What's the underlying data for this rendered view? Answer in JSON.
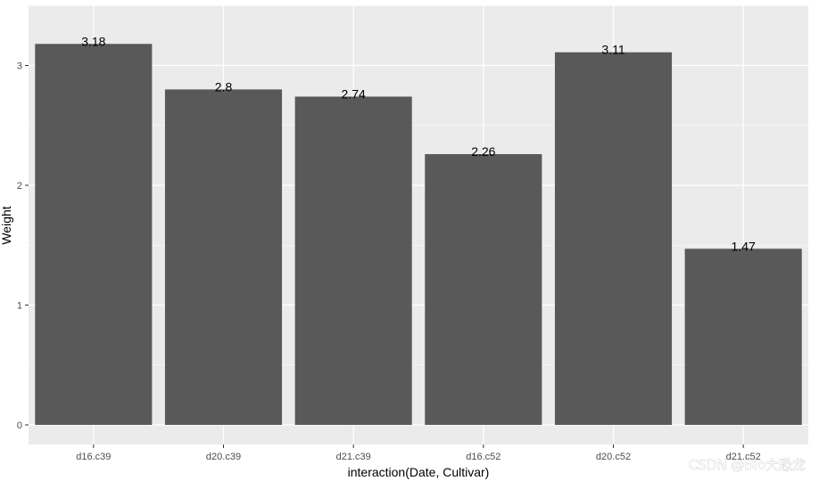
{
  "chart_data": {
    "type": "bar",
    "categories": [
      "d16.c39",
      "d20.c39",
      "d21.c39",
      "d16.c52",
      "d20.c52",
      "d21.c52"
    ],
    "values": [
      3.18,
      2.8,
      2.74,
      2.26,
      3.11,
      1.47
    ],
    "data_labels": [
      "3.18",
      "2.8",
      "2.74",
      "2.26",
      "3.11",
      "1.47"
    ],
    "title": "",
    "xlabel": "interaction(Date, Cultivar)",
    "ylabel": "Weight",
    "ylim": [
      0,
      3.5
    ],
    "yticks": [
      0,
      1,
      2,
      3
    ],
    "ytick_labels": [
      "0",
      "1",
      "2",
      "3"
    ],
    "grid": true,
    "colors": {
      "panel_bg": "#ebebeb",
      "grid": "#ffffff",
      "bar": "#595959",
      "tick_text": "#4d4d4d",
      "tick_mark": "#333333"
    }
  },
  "watermark": "CSDN @Bio大恐龙"
}
